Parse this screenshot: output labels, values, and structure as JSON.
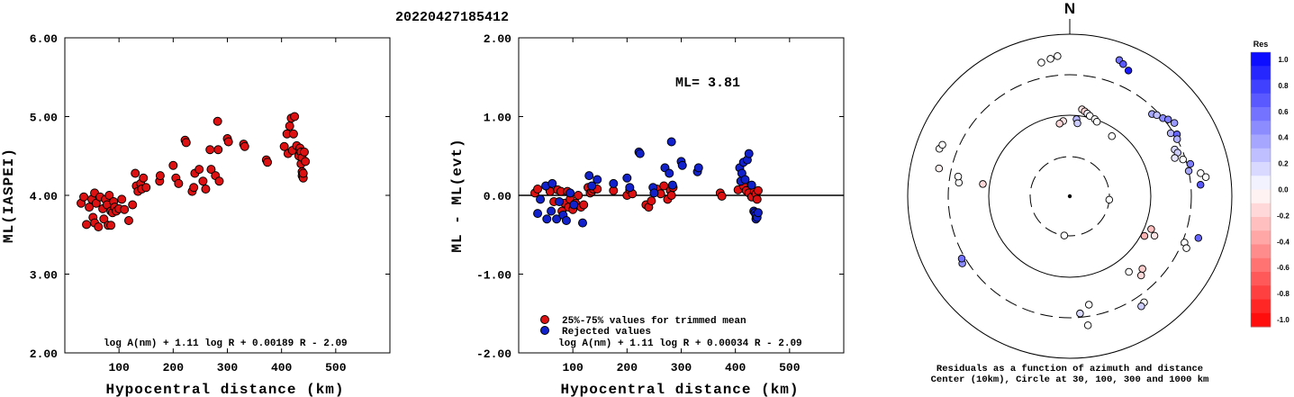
{
  "event_id": "20220427185412",
  "chart_data": [
    {
      "type": "scatter",
      "ylabel": "ML(IASPEI)",
      "xlabel": "Hypocentral distance (km)",
      "xlim": [
        0,
        600
      ],
      "ylim": [
        2.0,
        6.0
      ],
      "x_ticks": [
        "100",
        "200",
        "300",
        "400",
        "500"
      ],
      "x_tick_values": [
        100,
        200,
        300,
        400,
        500
      ],
      "y_ticks": [
        "2.00",
        "3.00",
        "4.00",
        "5.00",
        "6.00"
      ],
      "y_tick_values": [
        2,
        3,
        4,
        5,
        6
      ],
      "formula": "log A(nm) + 1.11 log R + 0.00189 R - 2.09",
      "marker_color": "#dd1111",
      "points": [
        [
          30,
          3.9
        ],
        [
          35,
          3.98
        ],
        [
          40,
          3.63
        ],
        [
          45,
          3.85
        ],
        [
          50,
          3.95
        ],
        [
          52,
          3.72
        ],
        [
          55,
          4.03
        ],
        [
          55,
          3.65
        ],
        [
          58,
          3.9
        ],
        [
          62,
          3.6
        ],
        [
          65,
          3.98
        ],
        [
          70,
          3.83
        ],
        [
          72,
          3.7
        ],
        [
          75,
          3.95
        ],
        [
          78,
          3.88
        ],
        [
          80,
          3.62
        ],
        [
          82,
          4.0
        ],
        [
          85,
          3.8
        ],
        [
          85,
          3.62
        ],
        [
          88,
          3.78
        ],
        [
          90,
          3.92
        ],
        [
          92,
          3.85
        ],
        [
          95,
          3.8
        ],
        [
          100,
          3.83
        ],
        [
          105,
          3.95
        ],
        [
          110,
          3.82
        ],
        [
          118,
          3.68
        ],
        [
          125,
          3.88
        ],
        [
          130,
          4.28
        ],
        [
          132,
          4.12
        ],
        [
          135,
          4.05
        ],
        [
          140,
          4.15
        ],
        [
          142,
          4.08
        ],
        [
          145,
          4.22
        ],
        [
          150,
          4.1
        ],
        [
          175,
          4.18
        ],
        [
          176,
          4.25
        ],
        [
          200,
          4.38
        ],
        [
          205,
          4.22
        ],
        [
          210,
          4.15
        ],
        [
          222,
          4.7
        ],
        [
          224,
          4.67
        ],
        [
          235,
          4.05
        ],
        [
          238,
          4.1
        ],
        [
          240,
          4.28
        ],
        [
          248,
          4.33
        ],
        [
          255,
          4.18
        ],
        [
          260,
          4.08
        ],
        [
          268,
          4.58
        ],
        [
          270,
          4.33
        ],
        [
          278,
          4.25
        ],
        [
          282,
          4.94
        ],
        [
          283,
          4.58
        ],
        [
          285,
          4.18
        ],
        [
          300,
          4.72
        ],
        [
          302,
          4.68
        ],
        [
          330,
          4.65
        ],
        [
          332,
          4.62
        ],
        [
          372,
          4.45
        ],
        [
          374,
          4.42
        ],
        [
          405,
          4.62
        ],
        [
          410,
          4.78
        ],
        [
          412,
          4.53
        ],
        [
          415,
          4.88
        ],
        [
          418,
          4.98
        ],
        [
          420,
          4.57
        ],
        [
          422,
          4.78
        ],
        [
          424,
          5.0
        ],
        [
          428,
          4.63
        ],
        [
          432,
          4.5
        ],
        [
          434,
          4.6
        ],
        [
          436,
          4.55
        ],
        [
          436,
          4.4
        ],
        [
          438,
          4.48
        ],
        [
          438,
          4.3
        ],
        [
          438,
          4.25
        ],
        [
          440,
          4.22
        ],
        [
          440,
          4.28
        ],
        [
          442,
          4.55
        ],
        [
          444,
          4.43
        ]
      ]
    },
    {
      "type": "scatter",
      "ylabel": "ML - ML(evt)",
      "xlabel": "Hypocentral distance (km)",
      "xlim": [
        0,
        600
      ],
      "ylim": [
        -2.0,
        2.0
      ],
      "x_ticks": [
        "100",
        "200",
        "300",
        "400",
        "500"
      ],
      "x_tick_values": [
        100,
        200,
        300,
        400,
        500
      ],
      "y_ticks": [
        "-2.00",
        "-1.00",
        "0.00",
        "1.00",
        "2.00"
      ],
      "y_tick_values": [
        -2,
        -1,
        0,
        1,
        2
      ],
      "annotation": "ML= 3.81",
      "formula": "log A(nm) + 1.11 log R + 0.00034 R - 2.09",
      "series": [
        {
          "name": "25%-75% values for trimmed mean",
          "color": "#dd1111",
          "points": [
            [
              30,
              0.03
            ],
            [
              35,
              0.08
            ],
            [
              55,
              0.1
            ],
            [
              58,
              0.05
            ],
            [
              65,
              -0.08
            ],
            [
              72,
              0.07
            ],
            [
              78,
              0.05
            ],
            [
              80,
              -0.2
            ],
            [
              85,
              -0.1
            ],
            [
              90,
              0.05
            ],
            [
              92,
              -0.15
            ],
            [
              95,
              -0.05
            ],
            [
              100,
              -0.18
            ],
            [
              105,
              -0.1
            ],
            [
              110,
              0.0
            ],
            [
              115,
              -0.15
            ],
            [
              120,
              -0.12
            ],
            [
              128,
              0.1
            ],
            [
              132,
              0.03
            ],
            [
              135,
              0.05
            ],
            [
              138,
              0.08
            ],
            [
              145,
              0.08
            ],
            [
              175,
              0.06
            ],
            [
              200,
              0.0
            ],
            [
              205,
              0.07
            ],
            [
              210,
              0.02
            ],
            [
              235,
              -0.12
            ],
            [
              240,
              -0.15
            ],
            [
              245,
              -0.07
            ],
            [
              255,
              0.08
            ],
            [
              262,
              0.02
            ],
            [
              268,
              0.12
            ],
            [
              275,
              -0.05
            ],
            [
              280,
              0.06
            ],
            [
              282,
              0.0
            ],
            [
              285,
              0.1
            ],
            [
              372,
              0.03
            ],
            [
              375,
              -0.01
            ],
            [
              405,
              0.07
            ],
            [
              415,
              0.12
            ],
            [
              420,
              0.06
            ],
            [
              425,
              0.03
            ],
            [
              430,
              -0.02
            ],
            [
              435,
              0.05
            ],
            [
              438,
              0.02
            ],
            [
              440,
              -0.05
            ],
            [
              442,
              0.06
            ]
          ]
        },
        {
          "name": "Rejected values",
          "color": "#1122cc",
          "points": [
            [
              35,
              -0.23
            ],
            [
              40,
              -0.05
            ],
            [
              50,
              0.12
            ],
            [
              52,
              -0.3
            ],
            [
              60,
              -0.2
            ],
            [
              62,
              0.15
            ],
            [
              70,
              -0.3
            ],
            [
              75,
              -0.08
            ],
            [
              82,
              -0.25
            ],
            [
              88,
              -0.32
            ],
            [
              95,
              0.03
            ],
            [
              102,
              -0.12
            ],
            [
              118,
              -0.35
            ],
            [
              130,
              0.25
            ],
            [
              135,
              0.12
            ],
            [
              145,
              0.2
            ],
            [
              175,
              0.15
            ],
            [
              200,
              0.22
            ],
            [
              205,
              0.1
            ],
            [
              222,
              0.55
            ],
            [
              224,
              0.53
            ],
            [
              248,
              0.1
            ],
            [
              250,
              0.03
            ],
            [
              270,
              0.35
            ],
            [
              278,
              0.28
            ],
            [
              282,
              0.68
            ],
            [
              284,
              0.13
            ],
            [
              300,
              0.43
            ],
            [
              302,
              0.38
            ],
            [
              330,
              0.3
            ],
            [
              332,
              0.35
            ],
            [
              408,
              0.35
            ],
            [
              410,
              0.18
            ],
            [
              412,
              0.28
            ],
            [
              415,
              0.42
            ],
            [
              418,
              0.2
            ],
            [
              422,
              0.45
            ],
            [
              425,
              0.53
            ],
            [
              430,
              0.13
            ],
            [
              434,
              -0.2
            ],
            [
              436,
              -0.22
            ],
            [
              438,
              -0.25
            ],
            [
              438,
              -0.3
            ],
            [
              440,
              -0.28
            ],
            [
              442,
              -0.22
            ]
          ]
        }
      ]
    },
    {
      "type": "scatter",
      "subtype": "polar",
      "north_label": "N",
      "rings_km": [
        10,
        30,
        100,
        300,
        1000
      ],
      "caption_line1": "Residuals as a function of azimuth and distance",
      "caption_line2": "Center (10km), Circle at 30, 100, 300 and 1000 km",
      "colorbar": {
        "title": "Res",
        "ticks": [
          "1.0",
          "0.8",
          "0.6",
          "0.4",
          "0.2",
          "0.0",
          "-0.2",
          "-0.4",
          "-0.6",
          "-0.8",
          "-1.0"
        ],
        "max_color": "#0000ff",
        "min_color": "#ff0000"
      },
      "points": [
        {
          "az": 355,
          "d": 530,
          "res": 0.0
        },
        {
          "az": 352,
          "d": 500,
          "res": 0.0
        },
        {
          "az": 348,
          "d": 470,
          "res": 0.0
        },
        {
          "az": 20,
          "d": 600,
          "res": 0.55
        },
        {
          "az": 22,
          "d": 560,
          "res": 0.65
        },
        {
          "az": 25,
          "d": 500,
          "res": 0.9
        },
        {
          "az": 8,
          "d": 120,
          "res": -0.1
        },
        {
          "az": 10,
          "d": 115,
          "res": -0.15
        },
        {
          "az": 12,
          "d": 110,
          "res": 0.05
        },
        {
          "az": 14,
          "d": 105,
          "res": 0.0
        },
        {
          "az": 18,
          "d": 100,
          "res": 0.0
        },
        {
          "az": 20,
          "d": 95,
          "res": 0.0
        },
        {
          "az": 355,
          "d": 85,
          "res": -0.1
        },
        {
          "az": 352,
          "d": 80,
          "res": -0.15
        },
        {
          "az": 35,
          "d": 80,
          "res": 0.0
        },
        {
          "az": 5,
          "d": 90,
          "res": 0.3
        },
        {
          "az": 6,
          "d": 80,
          "res": 0.2
        },
        {
          "az": 45,
          "d": 260,
          "res": 0.35
        },
        {
          "az": 47,
          "d": 280,
          "res": 0.25
        },
        {
          "az": 50,
          "d": 300,
          "res": 0.45
        },
        {
          "az": 52,
          "d": 330,
          "res": 0.5
        },
        {
          "az": 55,
          "d": 360,
          "res": 0.4
        },
        {
          "az": 58,
          "d": 280,
          "res": 0.3
        },
        {
          "az": 60,
          "d": 320,
          "res": 0.6
        },
        {
          "az": 62,
          "d": 300,
          "res": 0.3
        },
        {
          "az": 66,
          "d": 250,
          "res": 0.15
        },
        {
          "az": 68,
          "d": 260,
          "res": 0.2
        },
        {
          "az": 70,
          "d": 230,
          "res": 0.1
        },
        {
          "az": 72,
          "d": 280,
          "res": 0.0
        },
        {
          "az": 75,
          "d": 330,
          "res": 0.5
        },
        {
          "az": 78,
          "d": 300,
          "res": 0.35
        },
        {
          "az": 80,
          "d": 420,
          "res": 0.0
        },
        {
          "az": 82,
          "d": 480,
          "res": 0.0
        },
        {
          "az": 85,
          "d": 400,
          "res": 0.65
        },
        {
          "az": 95,
          "d": 30,
          "res": 0.0
        },
        {
          "az": 112,
          "d": 120,
          "res": -0.25
        },
        {
          "az": 115,
          "d": 140,
          "res": -0.1
        },
        {
          "az": 118,
          "d": 110,
          "res": -0.3
        },
        {
          "az": 112,
          "d": 320,
          "res": 0.0
        },
        {
          "az": 114,
          "d": 360,
          "res": 0.0
        },
        {
          "az": 108,
          "d": 450,
          "res": 0.6
        },
        {
          "az": 135,
          "d": 180,
          "res": -0.2
        },
        {
          "az": 138,
          "d": 200,
          "res": -0.15
        },
        {
          "az": 142,
          "d": 150,
          "res": 0.0
        },
        {
          "az": 145,
          "d": 380,
          "res": 0.0
        },
        {
          "az": 147,
          "d": 400,
          "res": 0.2
        },
        {
          "az": 170,
          "d": 220,
          "res": 0.0
        },
        {
          "az": 172,
          "d": 390,
          "res": 0.0
        },
        {
          "az": 175,
          "d": 270,
          "res": 0.15
        },
        {
          "az": 188,
          "d": 30,
          "res": 0.0
        },
        {
          "az": 238,
          "d": 350,
          "res": 0.45
        },
        {
          "az": 240,
          "d": 330,
          "res": 0.55
        },
        {
          "az": 278,
          "d": 120,
          "res": -0.15
        },
        {
          "az": 277,
          "d": 230,
          "res": 0.0
        },
        {
          "az": 280,
          "d": 240,
          "res": 0.0
        },
        {
          "az": 282,
          "d": 430,
          "res": -0.05
        },
        {
          "az": 290,
          "d": 500,
          "res": 0.0
        },
        {
          "az": 292,
          "d": 480,
          "res": 0.0
        }
      ]
    }
  ]
}
